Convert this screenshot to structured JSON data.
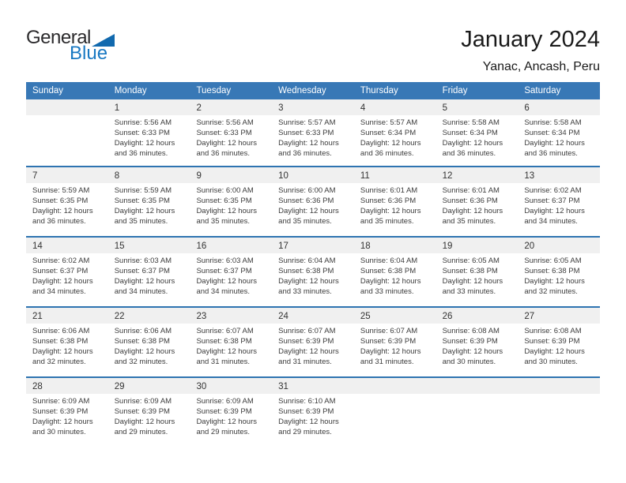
{
  "logo": {
    "general": "General",
    "blue": "Blue"
  },
  "header": {
    "title": "January 2024",
    "location": "Yanac, Ancash, Peru"
  },
  "colors": {
    "header_bg": "#3878B6",
    "separator": "#2E74B1",
    "band_bg": "#F0F0F0",
    "logo_blue": "#1878C2",
    "logo_triangle": "#1169AE"
  },
  "calendar": {
    "weekdays": [
      "Sunday",
      "Monday",
      "Tuesday",
      "Wednesday",
      "Thursday",
      "Friday",
      "Saturday"
    ],
    "weeks": [
      {
        "days": [
          null,
          {
            "date": "1",
            "lines": [
              "Sunrise: 5:56 AM",
              "Sunset: 6:33 PM",
              "Daylight: 12 hours",
              "and 36 minutes."
            ]
          },
          {
            "date": "2",
            "lines": [
              "Sunrise: 5:56 AM",
              "Sunset: 6:33 PM",
              "Daylight: 12 hours",
              "and 36 minutes."
            ]
          },
          {
            "date": "3",
            "lines": [
              "Sunrise: 5:57 AM",
              "Sunset: 6:33 PM",
              "Daylight: 12 hours",
              "and 36 minutes."
            ]
          },
          {
            "date": "4",
            "lines": [
              "Sunrise: 5:57 AM",
              "Sunset: 6:34 PM",
              "Daylight: 12 hours",
              "and 36 minutes."
            ]
          },
          {
            "date": "5",
            "lines": [
              "Sunrise: 5:58 AM",
              "Sunset: 6:34 PM",
              "Daylight: 12 hours",
              "and 36 minutes."
            ]
          },
          {
            "date": "6",
            "lines": [
              "Sunrise: 5:58 AM",
              "Sunset: 6:34 PM",
              "Daylight: 12 hours",
              "and 36 minutes."
            ]
          }
        ]
      },
      {
        "days": [
          {
            "date": "7",
            "lines": [
              "Sunrise: 5:59 AM",
              "Sunset: 6:35 PM",
              "Daylight: 12 hours",
              "and 36 minutes."
            ]
          },
          {
            "date": "8",
            "lines": [
              "Sunrise: 5:59 AM",
              "Sunset: 6:35 PM",
              "Daylight: 12 hours",
              "and 35 minutes."
            ]
          },
          {
            "date": "9",
            "lines": [
              "Sunrise: 6:00 AM",
              "Sunset: 6:35 PM",
              "Daylight: 12 hours",
              "and 35 minutes."
            ]
          },
          {
            "date": "10",
            "lines": [
              "Sunrise: 6:00 AM",
              "Sunset: 6:36 PM",
              "Daylight: 12 hours",
              "and 35 minutes."
            ]
          },
          {
            "date": "11",
            "lines": [
              "Sunrise: 6:01 AM",
              "Sunset: 6:36 PM",
              "Daylight: 12 hours",
              "and 35 minutes."
            ]
          },
          {
            "date": "12",
            "lines": [
              "Sunrise: 6:01 AM",
              "Sunset: 6:36 PM",
              "Daylight: 12 hours",
              "and 35 minutes."
            ]
          },
          {
            "date": "13",
            "lines": [
              "Sunrise: 6:02 AM",
              "Sunset: 6:37 PM",
              "Daylight: 12 hours",
              "and 34 minutes."
            ]
          }
        ]
      },
      {
        "days": [
          {
            "date": "14",
            "lines": [
              "Sunrise: 6:02 AM",
              "Sunset: 6:37 PM",
              "Daylight: 12 hours",
              "and 34 minutes."
            ]
          },
          {
            "date": "15",
            "lines": [
              "Sunrise: 6:03 AM",
              "Sunset: 6:37 PM",
              "Daylight: 12 hours",
              "and 34 minutes."
            ]
          },
          {
            "date": "16",
            "lines": [
              "Sunrise: 6:03 AM",
              "Sunset: 6:37 PM",
              "Daylight: 12 hours",
              "and 34 minutes."
            ]
          },
          {
            "date": "17",
            "lines": [
              "Sunrise: 6:04 AM",
              "Sunset: 6:38 PM",
              "Daylight: 12 hours",
              "and 33 minutes."
            ]
          },
          {
            "date": "18",
            "lines": [
              "Sunrise: 6:04 AM",
              "Sunset: 6:38 PM",
              "Daylight: 12 hours",
              "and 33 minutes."
            ]
          },
          {
            "date": "19",
            "lines": [
              "Sunrise: 6:05 AM",
              "Sunset: 6:38 PM",
              "Daylight: 12 hours",
              "and 33 minutes."
            ]
          },
          {
            "date": "20",
            "lines": [
              "Sunrise: 6:05 AM",
              "Sunset: 6:38 PM",
              "Daylight: 12 hours",
              "and 32 minutes."
            ]
          }
        ]
      },
      {
        "days": [
          {
            "date": "21",
            "lines": [
              "Sunrise: 6:06 AM",
              "Sunset: 6:38 PM",
              "Daylight: 12 hours",
              "and 32 minutes."
            ]
          },
          {
            "date": "22",
            "lines": [
              "Sunrise: 6:06 AM",
              "Sunset: 6:38 PM",
              "Daylight: 12 hours",
              "and 32 minutes."
            ]
          },
          {
            "date": "23",
            "lines": [
              "Sunrise: 6:07 AM",
              "Sunset: 6:38 PM",
              "Daylight: 12 hours",
              "and 31 minutes."
            ]
          },
          {
            "date": "24",
            "lines": [
              "Sunrise: 6:07 AM",
              "Sunset: 6:39 PM",
              "Daylight: 12 hours",
              "and 31 minutes."
            ]
          },
          {
            "date": "25",
            "lines": [
              "Sunrise: 6:07 AM",
              "Sunset: 6:39 PM",
              "Daylight: 12 hours",
              "and 31 minutes."
            ]
          },
          {
            "date": "26",
            "lines": [
              "Sunrise: 6:08 AM",
              "Sunset: 6:39 PM",
              "Daylight: 12 hours",
              "and 30 minutes."
            ]
          },
          {
            "date": "27",
            "lines": [
              "Sunrise: 6:08 AM",
              "Sunset: 6:39 PM",
              "Daylight: 12 hours",
              "and 30 minutes."
            ]
          }
        ]
      },
      {
        "days": [
          {
            "date": "28",
            "lines": [
              "Sunrise: 6:09 AM",
              "Sunset: 6:39 PM",
              "Daylight: 12 hours",
              "and 30 minutes."
            ]
          },
          {
            "date": "29",
            "lines": [
              "Sunrise: 6:09 AM",
              "Sunset: 6:39 PM",
              "Daylight: 12 hours",
              "and 29 minutes."
            ]
          },
          {
            "date": "30",
            "lines": [
              "Sunrise: 6:09 AM",
              "Sunset: 6:39 PM",
              "Daylight: 12 hours",
              "and 29 minutes."
            ]
          },
          {
            "date": "31",
            "lines": [
              "Sunrise: 6:10 AM",
              "Sunset: 6:39 PM",
              "Daylight: 12 hours",
              "and 29 minutes."
            ]
          },
          null,
          null,
          null
        ]
      }
    ]
  }
}
